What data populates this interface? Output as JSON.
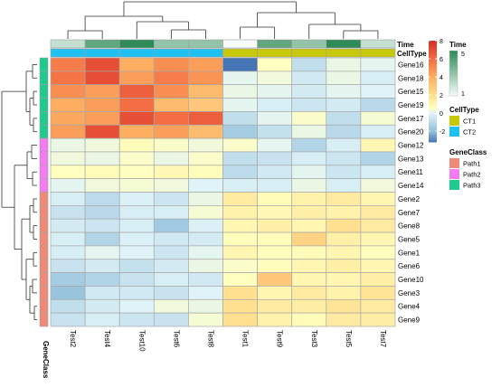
{
  "chart_data": {
    "type": "heatmap",
    "columns": [
      "Test2",
      "Test4",
      "Test10",
      "Test6",
      "Test8",
      "Test1",
      "Test9",
      "Test3",
      "Test5",
      "Test7"
    ],
    "rows": [
      "Gene16",
      "Gene18",
      "Gene15",
      "Gene19",
      "Gene17",
      "Gene20",
      "Gene12",
      "Gene13",
      "Gene11",
      "Gene14",
      "Gene2",
      "Gene7",
      "Gene8",
      "Gene5",
      "Gene1",
      "Gene6",
      "Gene10",
      "Gene3",
      "Gene4",
      "Gene9"
    ],
    "values": [
      [
        5.5,
        7.0,
        4.0,
        5.0,
        4.5,
        -3.2,
        0.6,
        -0.8,
        0.2,
        0.1
      ],
      [
        5.8,
        7.0,
        4.5,
        5.5,
        4.8,
        0.1,
        0.3,
        -0.4,
        0.2,
        -0.2
      ],
      [
        5.0,
        4.5,
        6.5,
        5.0,
        3.5,
        0.2,
        0.1,
        -0.3,
        0.1,
        0.0
      ],
      [
        4.0,
        4.5,
        6.0,
        3.5,
        3.0,
        0.1,
        -0.2,
        -0.5,
        -0.3,
        -1.0
      ],
      [
        4.2,
        4.5,
        7.0,
        6.0,
        6.5,
        -0.8,
        0.1,
        0.5,
        -0.8,
        0.4
      ],
      [
        4.5,
        7.0,
        4.0,
        4.5,
        3.5,
        -1.5,
        -0.7,
        0.2,
        -1.0,
        -0.2
      ],
      [
        0.2,
        0.3,
        0.8,
        0.5,
        0.3,
        0.5,
        0.1,
        -1.2,
        -0.2,
        1.0
      ],
      [
        0.3,
        0.2,
        0.5,
        0.2,
        0.5,
        -0.8,
        -0.6,
        -0.2,
        -0.5,
        -1.2
      ],
      [
        0.6,
        0.8,
        0.6,
        0.9,
        0.7,
        -0.9,
        -0.4,
        0.1,
        -0.5,
        -0.2
      ],
      [
        0.1,
        0.3,
        0.4,
        0.3,
        0.0,
        -0.2,
        -0.2,
        0.2,
        -0.2,
        0.3
      ],
      [
        -0.2,
        -0.9,
        -0.1,
        -0.5,
        0.2,
        1.5,
        0.8,
        1.2,
        1.5,
        1.0
      ],
      [
        -0.6,
        -1.0,
        -0.2,
        -0.2,
        0.4,
        1.2,
        0.9,
        1.3,
        1.2,
        1.5
      ],
      [
        -0.3,
        -0.5,
        -0.2,
        -1.6,
        -0.1,
        1.0,
        1.3,
        1.0,
        2.0,
        1.5
      ],
      [
        -0.2,
        -1.2,
        -0.1,
        -0.4,
        -0.3,
        0.7,
        0.8,
        2.5,
        1.3,
        1.0
      ],
      [
        -0.2,
        0.1,
        0.0,
        -0.5,
        0.1,
        1.0,
        0.7,
        0.8,
        1.0,
        0.7
      ],
      [
        -0.6,
        -0.3,
        -0.7,
        -0.3,
        0.2,
        0.5,
        0.7,
        1.0,
        1.3,
        1.0
      ],
      [
        -1.5,
        -1.2,
        -0.6,
        -0.2,
        -0.4,
        0.6,
        3.0,
        1.0,
        1.0,
        1.3
      ],
      [
        -1.8,
        -0.4,
        -0.4,
        -0.6,
        0.0,
        2.0,
        1.0,
        1.5,
        1.2,
        1.8
      ],
      [
        -0.8,
        -0.3,
        0.0,
        0.3,
        0.2,
        2.0,
        1.5,
        1.4,
        1.8,
        1.5
      ],
      [
        -0.6,
        -0.2,
        -0.5,
        -0.6,
        0.4,
        2.0,
        1.2,
        0.8,
        1.5,
        1.4
      ]
    ],
    "color_scale": {
      "min": -3.2,
      "max": 8,
      "ticks": [
        -2,
        0,
        2,
        4,
        6,
        8
      ],
      "stops": [
        {
          "v": -3.2,
          "c": "#4575b4"
        },
        {
          "v": -2,
          "c": "#91bfdb"
        },
        {
          "v": 0,
          "c": "#e0f3f8"
        },
        {
          "v": 0.6,
          "c": "#ffffbf"
        },
        {
          "v": 2,
          "c": "#fee090"
        },
        {
          "v": 4,
          "c": "#fdae61"
        },
        {
          "v": 6,
          "c": "#f46d43"
        },
        {
          "v": 8,
          "c": "#d73027"
        }
      ]
    },
    "col_annotations": [
      {
        "name": "Time",
        "values": [
          2,
          4,
          5,
          3,
          3,
          1,
          4,
          3,
          5,
          2
        ]
      },
      {
        "name": "CellType",
        "values": [
          "CT2",
          "CT2",
          "CT2",
          "CT2",
          "CT2",
          "CT1",
          "CT1",
          "CT1",
          "CT1",
          "CT1"
        ]
      }
    ],
    "row_annotation": {
      "name": "GeneClass",
      "values": [
        "Path3",
        "Path3",
        "Path3",
        "Path3",
        "Path3",
        "Path3",
        "Path2",
        "Path2",
        "Path2",
        "Path2",
        "Path1",
        "Path1",
        "Path1",
        "Path1",
        "Path1",
        "Path1",
        "Path1",
        "Path1",
        "Path1",
        "Path1"
      ]
    },
    "legends": {
      "time": {
        "title": "Time",
        "ticks": [
          5,
          1
        ],
        "range": [
          1,
          5
        ],
        "colors": [
          "#f7fcfb",
          "#2e8b57"
        ]
      },
      "celltype": {
        "title": "CellType",
        "items": [
          {
            "label": "CT1",
            "color": "#c8c80a"
          },
          {
            "label": "CT2",
            "color": "#1fc1f2"
          }
        ]
      },
      "geneclass": {
        "title": "GeneClass",
        "items": [
          {
            "label": "Path1",
            "color": "#f08a78"
          },
          {
            "label": "Path2",
            "color": "#f27cf0"
          },
          {
            "label": "Path3",
            "color": "#1ecb8d"
          }
        ]
      }
    }
  }
}
